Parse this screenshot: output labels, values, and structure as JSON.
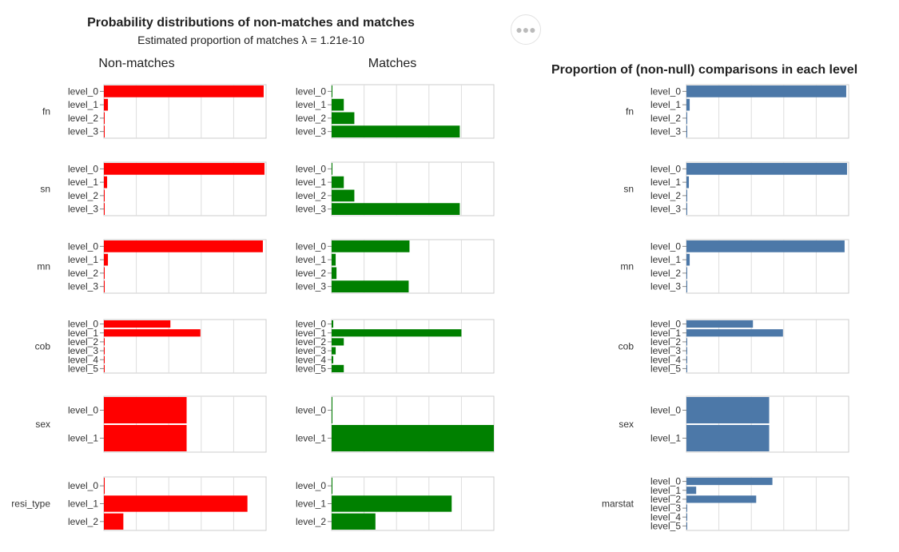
{
  "header": {
    "title": "Probability distributions of non-matches and matches",
    "subtitle_prefix": "Estimated proportion of matches λ =",
    "lambda_value": "1.21e-10",
    "nonmatch_title": "Non-matches",
    "match_title": "Matches",
    "proportion_title": "Proportion of (non-null) comparisons in each level",
    "more_icon": "more-horizontal-icon"
  },
  "colors": {
    "nonmatch": "#ff0000",
    "match": "#008000",
    "proportion": "#4c78a8",
    "grid": "#dddddd",
    "frame": "#cccccc"
  },
  "chart_data": [
    {
      "type": "bar",
      "title": "Non-matches",
      "orientation": "horizontal",
      "xlim": [
        0,
        1
      ],
      "grid": true,
      "rows": [
        {
          "name": "fn",
          "categories": [
            "level_0",
            "level_1",
            "level_2",
            "level_3"
          ],
          "values": [
            0.985,
            0.025,
            0.002,
            0.003
          ]
        },
        {
          "name": "sn",
          "categories": [
            "level_0",
            "level_1",
            "level_2",
            "level_3"
          ],
          "values": [
            0.99,
            0.02,
            0.002,
            0.003
          ]
        },
        {
          "name": "mn",
          "categories": [
            "level_0",
            "level_1",
            "level_2",
            "level_3"
          ],
          "values": [
            0.98,
            0.025,
            0.002,
            0.005
          ]
        },
        {
          "name": "cob",
          "categories": [
            "level_0",
            "level_1",
            "level_2",
            "level_3",
            "level_4",
            "level_5"
          ],
          "values": [
            0.41,
            0.595,
            0.002,
            0.002,
            0.002,
            0.002
          ]
        },
        {
          "name": "sex",
          "categories": [
            "level_0",
            "level_1"
          ],
          "values": [
            0.51,
            0.51
          ]
        },
        {
          "name": "resi_type",
          "categories": [
            "level_0",
            "level_1",
            "level_2"
          ],
          "values": [
            0.005,
            0.885,
            0.12
          ]
        }
      ]
    },
    {
      "type": "bar",
      "title": "Matches",
      "orientation": "horizontal",
      "xlim": [
        0,
        1
      ],
      "grid": true,
      "rows": [
        {
          "name": "fn",
          "categories": [
            "level_0",
            "level_1",
            "level_2",
            "level_3"
          ],
          "values": [
            0.002,
            0.075,
            0.14,
            0.79
          ]
        },
        {
          "name": "sn",
          "categories": [
            "level_0",
            "level_1",
            "level_2",
            "level_3"
          ],
          "values": [
            0.002,
            0.075,
            0.14,
            0.79
          ]
        },
        {
          "name": "mn",
          "categories": [
            "level_0",
            "level_1",
            "level_2",
            "level_3"
          ],
          "values": [
            0.48,
            0.025,
            0.03,
            0.475
          ]
        },
        {
          "name": "cob",
          "categories": [
            "level_0",
            "level_1",
            "level_2",
            "level_3",
            "level_4",
            "level_5"
          ],
          "values": [
            0.01,
            0.8,
            0.075,
            0.025,
            0.01,
            0.075
          ]
        },
        {
          "name": "sex",
          "categories": [
            "level_0",
            "level_1"
          ],
          "values": [
            0.002,
            1.0
          ]
        },
        {
          "name": "resi_type",
          "categories": [
            "level_0",
            "level_1",
            "level_2"
          ],
          "values": [
            0.002,
            0.74,
            0.27
          ]
        }
      ]
    },
    {
      "type": "bar",
      "title": "Proportion of (non-null) comparisons in each level",
      "orientation": "horizontal",
      "xlim": [
        0,
        1
      ],
      "grid": true,
      "rows": [
        {
          "name": "fn",
          "categories": [
            "level_0",
            "level_1",
            "level_2",
            "level_3"
          ],
          "values": [
            0.985,
            0.02,
            0.002,
            0.003
          ]
        },
        {
          "name": "sn",
          "categories": [
            "level_0",
            "level_1",
            "level_2",
            "level_3"
          ],
          "values": [
            0.99,
            0.015,
            0.002,
            0.003
          ]
        },
        {
          "name": "mn",
          "categories": [
            "level_0",
            "level_1",
            "level_2",
            "level_3"
          ],
          "values": [
            0.975,
            0.02,
            0.002,
            0.005
          ]
        },
        {
          "name": "cob",
          "categories": [
            "level_0",
            "level_1",
            "level_2",
            "level_3",
            "level_4",
            "level_5"
          ],
          "values": [
            0.41,
            0.595,
            0.002,
            0.002,
            0.002,
            0.002
          ]
        },
        {
          "name": "sex",
          "categories": [
            "level_0",
            "level_1"
          ],
          "values": [
            0.51,
            0.51
          ]
        },
        {
          "name": "marstat",
          "categories": [
            "level_0",
            "level_1",
            "level_2",
            "level_3",
            "level_4",
            "level_5"
          ],
          "values": [
            0.53,
            0.06,
            0.43,
            0.002,
            0.002,
            0.002
          ]
        }
      ]
    }
  ]
}
